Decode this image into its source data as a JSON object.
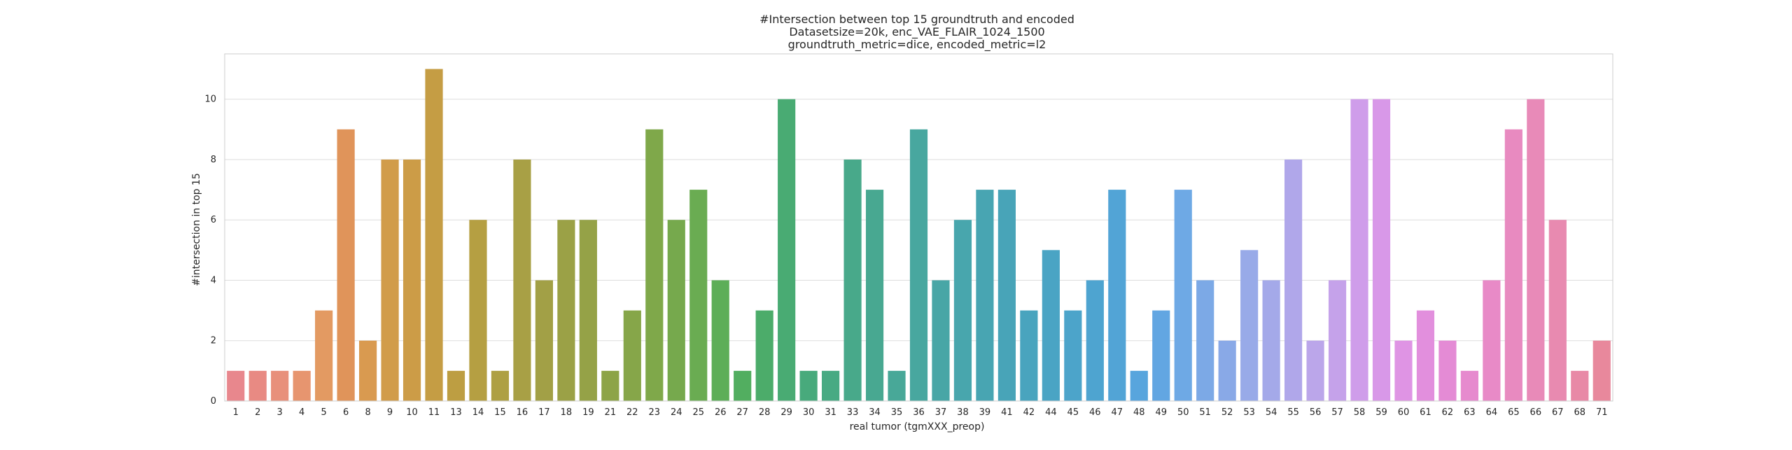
{
  "chart_data": {
    "type": "bar",
    "title": [
      "#Intersection between top 15 groundtruth and encoded",
      "Datasetsize=20k, enc_VAE_FLAIR_1024_1500",
      "groundtruth_metric=dice, encoded_metric=l2"
    ],
    "xlabel": "real tumor (tgmXXX_preop)",
    "ylabel": "#intersection in top 15",
    "ylim": [
      0,
      11.5
    ],
    "yticks": [
      0,
      2,
      4,
      6,
      8,
      10
    ],
    "grid": true,
    "categories": [
      "1",
      "2",
      "3",
      "4",
      "5",
      "6",
      "8",
      "9",
      "10",
      "11",
      "13",
      "14",
      "15",
      "16",
      "17",
      "18",
      "19",
      "21",
      "22",
      "23",
      "24",
      "25",
      "26",
      "27",
      "28",
      "29",
      "30",
      "31",
      "33",
      "34",
      "35",
      "36",
      "37",
      "38",
      "39",
      "41",
      "42",
      "44",
      "45",
      "46",
      "47",
      "48",
      "49",
      "50",
      "51",
      "52",
      "53",
      "54",
      "55",
      "56",
      "57",
      "58",
      "59",
      "60",
      "61",
      "62",
      "63",
      "64",
      "65",
      "66",
      "67",
      "68",
      "71"
    ],
    "values": [
      1,
      1,
      1,
      1,
      3,
      9,
      2,
      8,
      8,
      11,
      1,
      6,
      1,
      8,
      4,
      6,
      6,
      1,
      3,
      9,
      6,
      7,
      4,
      1,
      3,
      10,
      1,
      1,
      8,
      7,
      1,
      9,
      4,
      6,
      7,
      7,
      3,
      5,
      3,
      4,
      7,
      1,
      3,
      7,
      4,
      2,
      5,
      4,
      8,
      2,
      4,
      10,
      10,
      2,
      3,
      2,
      1,
      4,
      9,
      10,
      6,
      1,
      2
    ],
    "colors": [
      "#e8878d",
      "#e88a83",
      "#e8907b",
      "#e7956f",
      "#e39a62",
      "#e0945a",
      "#d99a50",
      "#d19c4a",
      "#cc9c47",
      "#c59d44",
      "#bd9e42",
      "#b59f42",
      "#aea043",
      "#a8a045",
      "#a2a046",
      "#9ba146",
      "#95a247",
      "#8da447",
      "#86a649",
      "#7fa84a",
      "#76a94d",
      "#6aac52",
      "#5dae58",
      "#52ae60",
      "#4cac6a",
      "#49ab73",
      "#48aa7c",
      "#48aa83",
      "#48a98a",
      "#48a891",
      "#48a898",
      "#48a79f",
      "#48a6a6",
      "#48a6ad",
      "#48a5b2",
      "#48a4b8",
      "#49a4be",
      "#4aa4c4",
      "#4ca4ca",
      "#4ea4d0",
      "#52a4d6",
      "#58a5dd",
      "#62a6e2",
      "#6ea9e5",
      "#7ca9e6",
      "#89a9e7",
      "#98aae8",
      "#a4a9e9",
      "#b0a7ea",
      "#bba6ea",
      "#c5a2ea",
      "#cf9dea",
      "#d898e8",
      "#df94e4",
      "#e28fdd",
      "#e48bd5",
      "#e68ace",
      "#e88ac7",
      "#e88ac0",
      "#e88ab8",
      "#e88ab0",
      "#e889a6",
      "#e8889c"
    ]
  }
}
